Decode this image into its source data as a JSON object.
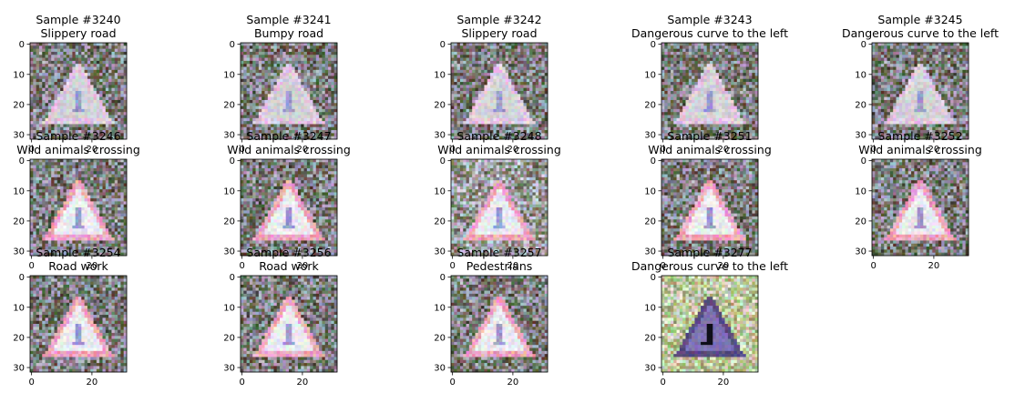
{
  "figure": {
    "background": "#ffffff",
    "title_color": "#000000",
    "axis_color": "#000000"
  },
  "chart_data": {
    "type": "image_grid",
    "image_size": [
      32,
      32
    ],
    "xticks": [
      "0",
      "20"
    ],
    "yticks": [
      "0",
      "10",
      "20",
      "30"
    ],
    "panels": [
      {
        "sample": "Sample #3240",
        "label": "Slippery road",
        "variant": "faint",
        "row": 0,
        "col": 0
      },
      {
        "sample": "Sample #3241",
        "label": "Bumpy road",
        "variant": "faint",
        "row": 0,
        "col": 1
      },
      {
        "sample": "Sample #3242",
        "label": "Slippery road",
        "variant": "faint",
        "row": 0,
        "col": 2
      },
      {
        "sample": "Sample #3243",
        "label": "Dangerous curve to the left",
        "variant": "faint",
        "row": 0,
        "col": 3
      },
      {
        "sample": "Sample #3245",
        "label": "Dangerous curve to the left",
        "variant": "faint",
        "row": 0,
        "col": 4
      },
      {
        "sample": "Sample #3246",
        "label": "Wild animals crossing",
        "variant": "sign",
        "row": 1,
        "col": 0
      },
      {
        "sample": "Sample #3247",
        "label": "Wild animals crossing",
        "variant": "sign",
        "row": 1,
        "col": 1
      },
      {
        "sample": "Sample #3248",
        "label": "Wild animals crossing",
        "variant": "bright",
        "row": 1,
        "col": 2
      },
      {
        "sample": "Sample #3251",
        "label": "Wild animals crossing",
        "variant": "sign",
        "row": 1,
        "col": 3
      },
      {
        "sample": "Sample #3252",
        "label": "Wild animals crossing",
        "variant": "sign",
        "row": 1,
        "col": 4
      },
      {
        "sample": "Sample #3254",
        "label": "Road work",
        "variant": "sign",
        "row": 2,
        "col": 0
      },
      {
        "sample": "Sample #3256",
        "label": "Road work",
        "variant": "sign",
        "row": 2,
        "col": 1
      },
      {
        "sample": "Sample #3257",
        "label": "Pedestrians",
        "variant": "sign",
        "row": 2,
        "col": 2
      },
      {
        "sample": "Sample #3277",
        "label": "Dangerous curve to the left",
        "variant": "dark",
        "row": 2,
        "col": 3
      }
    ]
  }
}
